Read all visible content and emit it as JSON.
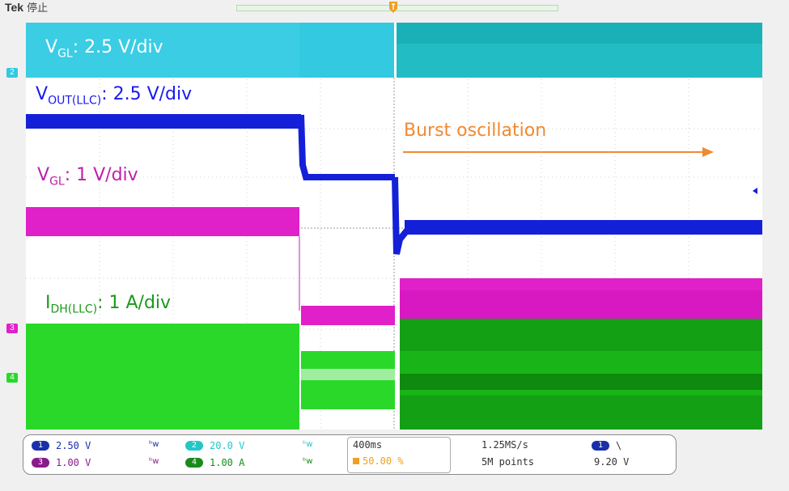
{
  "header": {
    "brand": "Tek",
    "status": "停止"
  },
  "annotations": {
    "vgl_top": {
      "symbol": "V",
      "sub": "GL",
      "text": ": 2.5 V/div",
      "color": "#ffffff"
    },
    "vout": {
      "symbol": "V",
      "sub": "OUT(LLC)",
      "text": ": 2.5 V/div",
      "color": "#1a1aee"
    },
    "vgl_mid": {
      "symbol": "V",
      "sub": "GL",
      "text": ": 1 V/div",
      "color": "#c020a8"
    },
    "idh": {
      "symbol": "I",
      "sub": "DH(LLC)",
      "text": ": 1 A/div",
      "color": "#1a9a1a"
    },
    "burst": {
      "text": "Burst oscillation",
      "color": "#f08a30"
    }
  },
  "channel_markers": [
    "2",
    "3",
    "4"
  ],
  "channels": [
    {
      "id": "1",
      "scale": "2.50 V",
      "color": "#1a2fa8"
    },
    {
      "id": "3",
      "scale": "1.00 V",
      "color": "#8a1a8a"
    },
    {
      "id": "2",
      "scale": "20.0 V",
      "color": "#22c8c8"
    },
    {
      "id": "4",
      "scale": "1.00 A",
      "color": "#1a8a1a"
    }
  ],
  "timebase": {
    "per_div": "400ms",
    "trigger_pos": "50.00 %"
  },
  "acquisition": {
    "sample_rate": "1.25MS/s",
    "record_length": "5M points"
  },
  "trigger": {
    "channel": "1",
    "slope": "\\",
    "level": "9.20 V"
  },
  "colors": {
    "cyan": "#33c9e0",
    "blue": "#1420d8",
    "magenta": "#e020c8",
    "green": "#2ad82a",
    "grid": "#c8c8c8"
  }
}
